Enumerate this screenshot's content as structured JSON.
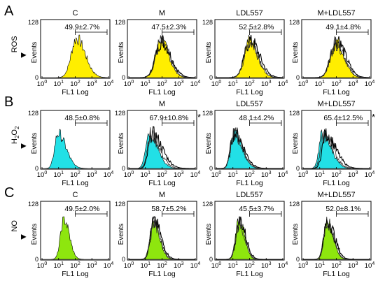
{
  "figure": {
    "rows": [
      {
        "letter": "A",
        "label_main": "ROS",
        "label_sub": "",
        "fill": "#ffee00",
        "panels": [
          {
            "title": "C",
            "stat": "49.9±2.7%",
            "star": false
          },
          {
            "title": "M",
            "stat": "47.5±2.3%",
            "star": false
          },
          {
            "title": "LDL557",
            "stat": "52.5±2.8%",
            "star": false
          },
          {
            "title": "M+LDL557",
            "stat": "49.1±4.8%",
            "star": false
          }
        ]
      },
      {
        "letter": "B",
        "label_main": "H",
        "label_sub": "2",
        "label_main2": "O",
        "label_sub2": "2",
        "fill": "#22e0e6",
        "panels": [
          {
            "title": "",
            "stat": "48.5±0.8%",
            "star": false
          },
          {
            "title": "M",
            "stat": "67.9±10.8%",
            "star": true
          },
          {
            "title": "LDL557",
            "stat": "48.1±4.2%",
            "star": false
          },
          {
            "title": "M+LDL557",
            "stat": "65.4±12.5%",
            "star": true
          }
        ]
      },
      {
        "letter": "C",
        "label_main": "NO",
        "label_sub": "",
        "fill": "#8ee60e",
        "panels": [
          {
            "title": "C",
            "stat": "49.5±2.0%",
            "star": false
          },
          {
            "title": "M",
            "stat": "58.7±5.2%",
            "star": false
          },
          {
            "title": "LDL557",
            "stat": "45.5±3.7%",
            "star": false
          },
          {
            "title": "M+LDL557",
            "stat": "52.0±8.1%",
            "star": false
          }
        ]
      }
    ],
    "axis": {
      "ylabel": "Events",
      "xlabel": "FL1 Log",
      "ymax": "128",
      "ymin": "0",
      "xticks": [
        {
          "base": "10",
          "exp": "0"
        },
        {
          "base": "10",
          "exp": "1"
        },
        {
          "base": "10",
          "exp": "2"
        },
        {
          "base": "10",
          "exp": "3"
        },
        {
          "base": "10",
          "exp": "4"
        }
      ]
    },
    "star_symbol": "*",
    "arrow_symbol": "▶"
  }
}
